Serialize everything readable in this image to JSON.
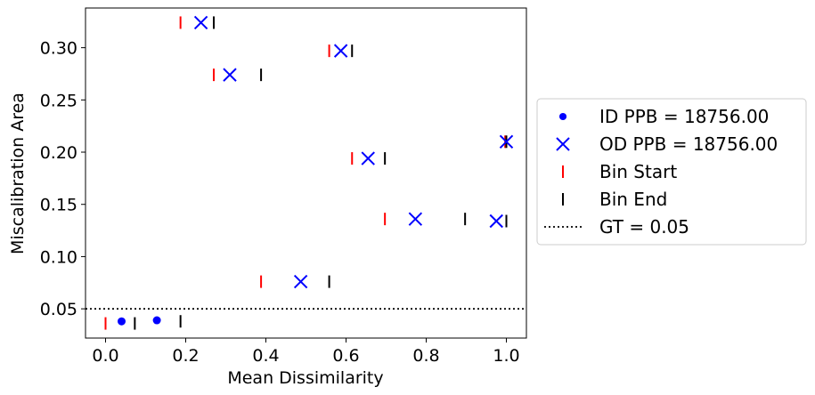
{
  "chart_data": {
    "type": "scatter",
    "title": "",
    "xlabel": "Mean Dissimilarity",
    "ylabel": "Miscalibration Area",
    "xlim": [
      -0.05,
      1.05
    ],
    "ylim": [
      0.022,
      0.338
    ],
    "xticks": [
      0.0,
      0.2,
      0.4,
      0.6,
      0.8,
      1.0
    ],
    "xtick_labels": [
      "0.0",
      "0.2",
      "0.4",
      "0.6",
      "0.8",
      "1.0"
    ],
    "yticks": [
      0.05,
      0.1,
      0.15,
      0.2,
      0.25,
      0.3
    ],
    "ytick_labels": [
      "0.05",
      "0.10",
      "0.15",
      "0.20",
      "0.25",
      "0.30"
    ],
    "grid": false,
    "legend_position": "outside-right",
    "series": [
      {
        "name": "ID PPB = 18756.00",
        "marker": "dot",
        "color": "#0000ff",
        "points": [
          {
            "x": 0.04,
            "y": 0.038
          },
          {
            "x": 0.128,
            "y": 0.039
          }
        ]
      },
      {
        "name": "OD PPB = 18756.00",
        "marker": "x",
        "color": "#0000ff",
        "points": [
          {
            "x": 0.238,
            "y": 0.324
          },
          {
            "x": 0.587,
            "y": 0.297
          },
          {
            "x": 0.31,
            "y": 0.274
          },
          {
            "x": 1.0,
            "y": 0.21
          },
          {
            "x": 0.655,
            "y": 0.194
          },
          {
            "x": 0.773,
            "y": 0.136
          },
          {
            "x": 0.975,
            "y": 0.134
          },
          {
            "x": 0.487,
            "y": 0.076
          }
        ]
      },
      {
        "name": "Bin Start",
        "marker": "vline",
        "color": "#ff0000",
        "points": [
          {
            "x": 0.187,
            "y": 0.324
          },
          {
            "x": 0.558,
            "y": 0.297
          },
          {
            "x": 0.27,
            "y": 0.274
          },
          {
            "x": 0.997,
            "y": 0.21
          },
          {
            "x": 0.615,
            "y": 0.194
          },
          {
            "x": 0.697,
            "y": 0.136
          },
          {
            "x": 0.388,
            "y": 0.076
          },
          {
            "x": 0.0,
            "y": 0.036
          }
        ]
      },
      {
        "name": "Bin End",
        "marker": "vline",
        "color": "#000000",
        "points": [
          {
            "x": 0.27,
            "y": 0.324
          },
          {
            "x": 0.615,
            "y": 0.297
          },
          {
            "x": 0.388,
            "y": 0.274
          },
          {
            "x": 1.0,
            "y": 0.21
          },
          {
            "x": 0.697,
            "y": 0.194
          },
          {
            "x": 0.897,
            "y": 0.136
          },
          {
            "x": 1.0,
            "y": 0.134
          },
          {
            "x": 0.558,
            "y": 0.076
          },
          {
            "x": 0.073,
            "y": 0.036
          },
          {
            "x": 0.187,
            "y": 0.038
          }
        ]
      }
    ],
    "reference_line": {
      "name": "GT = 0.05",
      "y": 0.05,
      "style": "dotted",
      "color": "#000000"
    }
  }
}
